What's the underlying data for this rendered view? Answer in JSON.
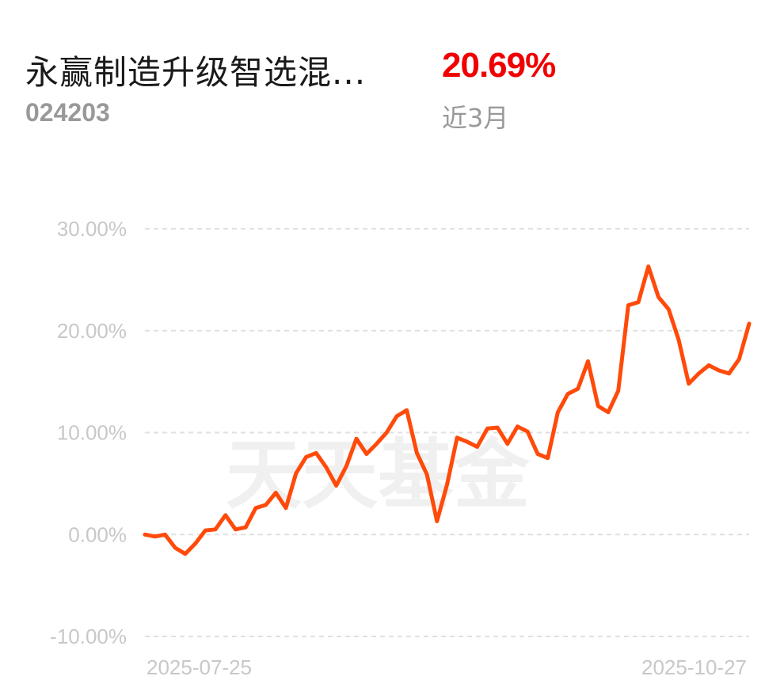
{
  "header": {
    "fund_name": "永赢制造升级智选混...",
    "fund_code": "024203",
    "return_value": "20.69%",
    "return_period": "近3月"
  },
  "watermark": "天天基金",
  "colors": {
    "line": "#ff4a0a",
    "return_value": "#f00000",
    "grid": "#e0e0e0",
    "axis_text": "#c8c8c8"
  },
  "chart_data": {
    "type": "line",
    "x_start_label": "2025-07-25",
    "x_end_label": "2025-10-27",
    "y_ticks": [
      30,
      20,
      10,
      0,
      -10
    ],
    "y_tick_labels": [
      "30.00%",
      "20.00%",
      "10.00%",
      "0.00%",
      "-10.00%"
    ],
    "ylim": [
      -10,
      30
    ],
    "grid": "horizontal dashed",
    "series": [
      {
        "values": [
          0.0,
          -0.2,
          0.0,
          -1.3,
          -1.9,
          -0.9,
          0.4,
          0.5,
          1.9,
          0.5,
          0.7,
          2.6,
          2.9,
          4.1,
          2.6,
          6.0,
          7.6,
          8.0,
          6.6,
          4.8,
          6.7,
          9.4,
          7.9,
          8.9,
          10.0,
          11.6,
          12.2,
          8.0,
          5.9,
          1.3,
          4.9,
          9.5,
          9.1,
          8.6,
          10.4,
          10.5,
          8.9,
          10.6,
          10.1,
          7.9,
          7.5,
          12.0,
          13.8,
          14.3,
          17.0,
          12.6,
          12.0,
          14.1,
          22.5,
          22.8,
          26.3,
          23.3,
          22.1,
          19.1,
          14.8,
          15.8,
          16.6,
          16.1,
          15.8,
          17.2,
          20.69
        ]
      }
    ]
  }
}
